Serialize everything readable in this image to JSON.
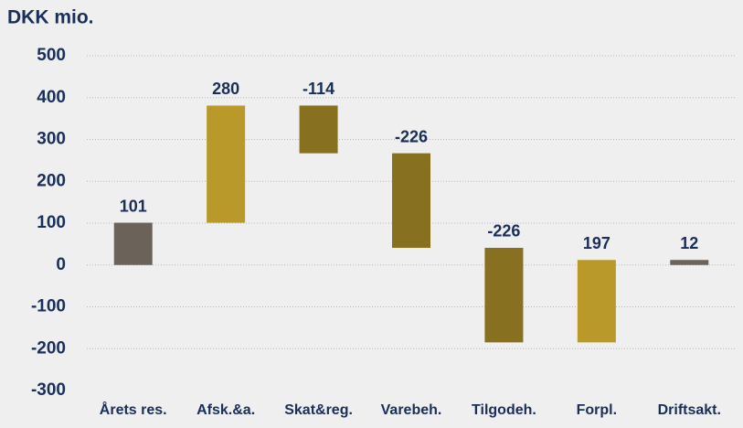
{
  "chart_data": {
    "type": "waterfall",
    "title": "DKK mio.",
    "categories": [
      "Årets res.",
      "Afsk.&a.",
      "Skat&reg.",
      "Varebeh.",
      "Tilgodeh.",
      "Forpl.",
      "Driftsakt."
    ],
    "values": [
      101,
      280,
      -114,
      -226,
      -226,
      197,
      12
    ],
    "is_total": [
      false,
      false,
      false,
      false,
      false,
      false,
      true
    ],
    "colors": [
      "#6b6259",
      "#b8992a",
      "#87701f",
      "#87701f",
      "#87701f",
      "#b8992a",
      "#6b6259"
    ],
    "ylim": [
      -300,
      500
    ],
    "yticks": [
      -300,
      -200,
      -100,
      0,
      100,
      200,
      300,
      400,
      500
    ],
    "grid": true
  }
}
